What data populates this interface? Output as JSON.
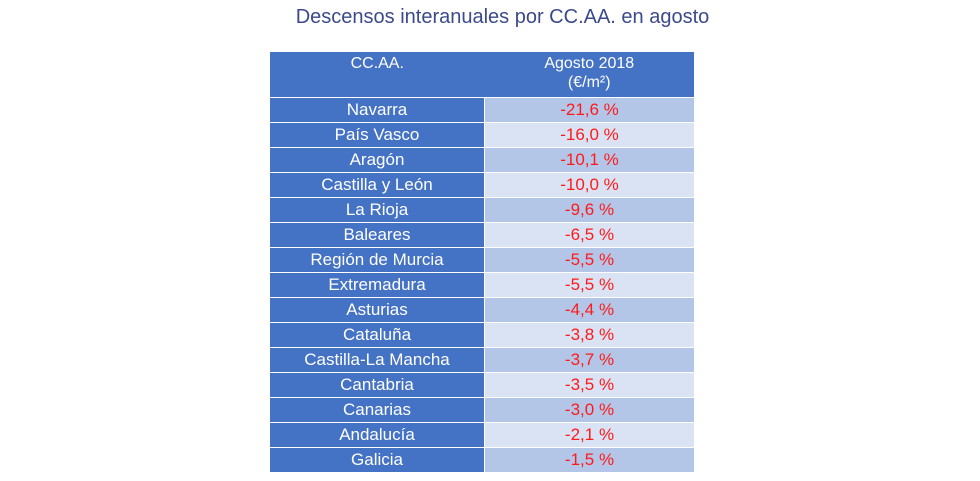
{
  "chart_data": {
    "type": "table",
    "title": "Descensos interanuales por CC.AA. en agosto",
    "columns": [
      "CC.AA.",
      "Agosto 2018\n(€/m²)"
    ],
    "column_lines": [
      [
        "CC.AA."
      ],
      [
        "Agosto 2018",
        "(€/m²)"
      ]
    ],
    "rows": [
      [
        "Navarra",
        "-21,6 %"
      ],
      [
        "País Vasco",
        "-16,0 %"
      ],
      [
        "Aragón",
        "-10,1 %"
      ],
      [
        "Castilla y León",
        "-10,0 %"
      ],
      [
        "La Rioja",
        "-9,6 %"
      ],
      [
        "Baleares",
        "-6,5 %"
      ],
      [
        "Región de Murcia",
        "-5,5 %"
      ],
      [
        "Extremadura",
        "-5,5 %"
      ],
      [
        "Asturias",
        "-4,4 %"
      ],
      [
        "Cataluña",
        "-3,8 %"
      ],
      [
        "Castilla-La Mancha",
        "-3,7 %"
      ],
      [
        "Cantabria",
        "-3,5 %"
      ],
      [
        "Canarias",
        "-3,0 %"
      ],
      [
        "Andalucía",
        "-2,1 %"
      ],
      [
        "Galicia",
        "-1,5 %"
      ]
    ],
    "colors": {
      "header": "#4472C4",
      "row_odd": "#B4C6E7",
      "row_even": "#DAE3F3",
      "value_text": "#FF1A1A",
      "title": "#3B4A8C"
    }
  }
}
